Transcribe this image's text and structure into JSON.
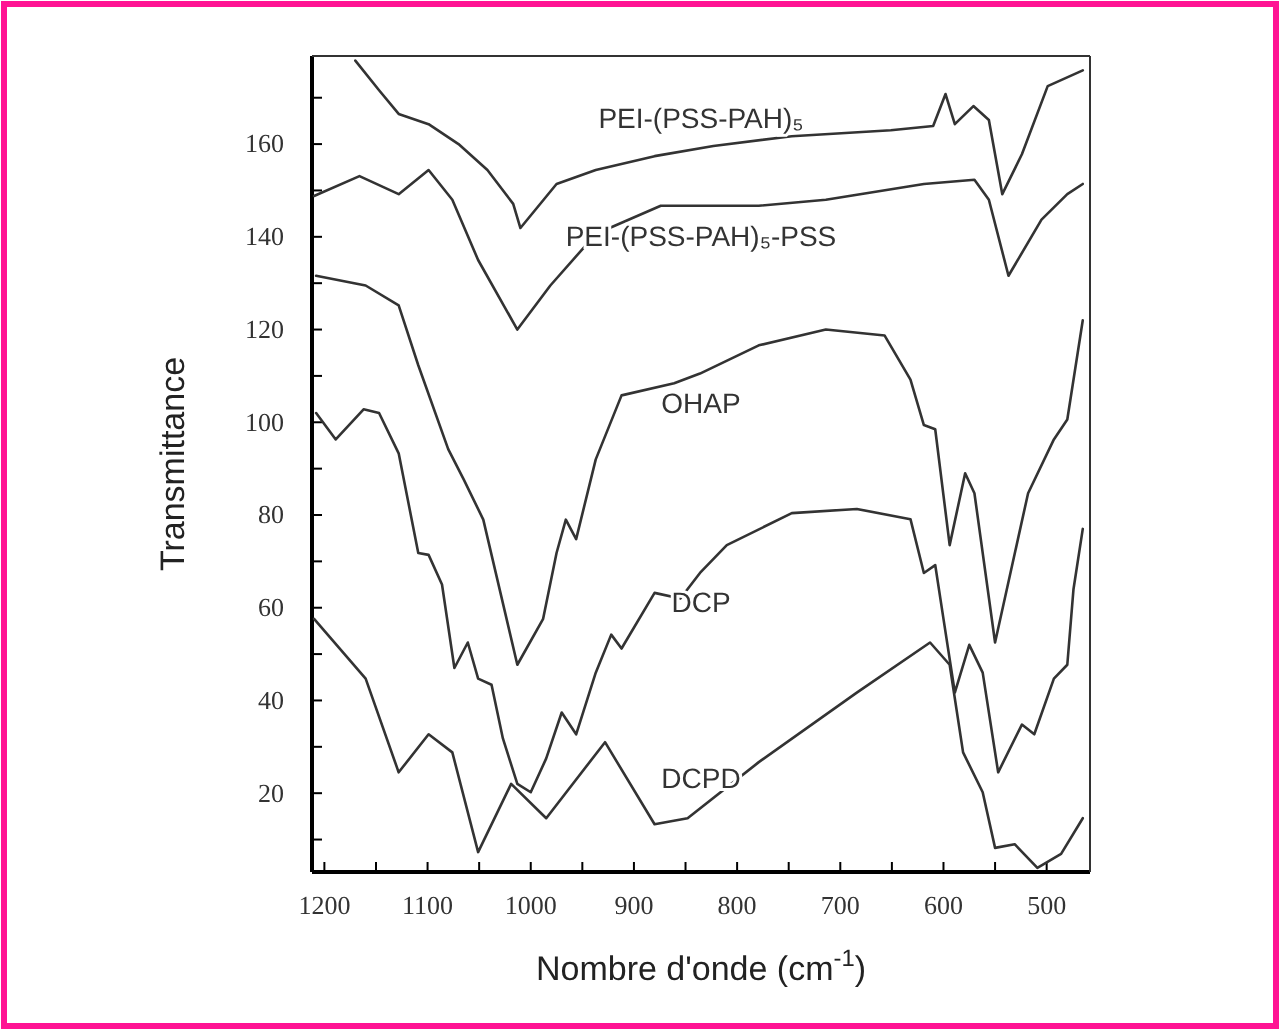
{
  "chart_data": {
    "type": "line",
    "xlabel": "Nombre d'onde (cm$^{-1}$)",
    "ylabel": "Transmittance",
    "xlim": [
      1212,
      458
    ],
    "ylim": [
      3,
      179
    ],
    "xticks": [
      1200,
      {
        "value": 1150,
        "label": null
      },
      1100,
      {
        "value": 1050,
        "label": null
      },
      1000,
      {
        "value": 950,
        "label": null
      },
      900,
      {
        "value": 850,
        "label": null
      },
      800,
      {
        "value": 750,
        "label": null
      },
      700,
      {
        "value": 650,
        "label": null
      },
      600,
      {
        "value": 550,
        "label": null
      },
      500
    ],
    "yticks": [
      {
        "value": 10,
        "label": null
      },
      20,
      {
        "value": 30,
        "label": null
      },
      40,
      {
        "value": 50,
        "label": null
      },
      60,
      {
        "value": 70,
        "label": null
      },
      80,
      {
        "value": 90,
        "label": null
      },
      100,
      {
        "value": 110,
        "label": null
      },
      120,
      {
        "value": 130,
        "label": null
      },
      140,
      {
        "value": 150,
        "label": null
      },
      160,
      {
        "value": 170,
        "label": null
      }
    ],
    "grid": false,
    "marker": "none",
    "line_style": "solid",
    "series": [
      {
        "name": "PEI-(PSS-PAH)₅",
        "color": "#333333",
        "x": [
          1170,
          1147,
          1128,
          1099,
          1070,
          1042,
          1017,
          1010,
          975,
          937,
          880,
          823,
          747,
          651,
          610,
          598,
          589,
          571,
          556,
          543,
          524,
          499,
          465
        ],
        "values": [
          178,
          171.6,
          166.5,
          164.3,
          160,
          154.4,
          147.1,
          141.9,
          151.4,
          154.4,
          157.4,
          159.6,
          161.7,
          163,
          163.9,
          170.8,
          164.3,
          168.2,
          165.2,
          149.2,
          157.8,
          172.5,
          175.9
        ]
      },
      {
        "name": "PEI-(PSS-PAH)₅-PSS",
        "color": "#333333",
        "x": [
          1210,
          1166,
          1128,
          1099,
          1076,
          1051,
          1013,
          981,
          937,
          874,
          779,
          714,
          619,
          570,
          556,
          537,
          505,
          480,
          465
        ],
        "values": [
          148.8,
          153.1,
          149.2,
          154.4,
          148,
          135,
          120,
          129.5,
          140.6,
          146.7,
          146.7,
          148,
          151.4,
          152.3,
          148,
          131.6,
          143.7,
          149.2,
          151.4
        ]
      },
      {
        "name": "OHAP",
        "color": "#333333",
        "x": [
          1208,
          1160,
          1128,
          1109,
          1080,
          1065,
          1046,
          1013,
          988,
          975,
          966,
          956,
          937,
          912,
          861,
          836,
          779,
          714,
          657,
          632,
          619,
          608,
          594,
          579,
          570,
          550,
          518,
          493,
          480,
          465
        ],
        "values": [
          131.6,
          129.5,
          125.2,
          112.3,
          94.2,
          87.7,
          79,
          47.7,
          57.6,
          71.8,
          79,
          74.8,
          92,
          105.8,
          108.4,
          110.5,
          116.6,
          120,
          118.7,
          109.2,
          99.4,
          98.5,
          73.5,
          89,
          84.7,
          52.5,
          84.7,
          96.3,
          100.6,
          122
        ]
      },
      {
        "name": "DCP",
        "color": "#333333",
        "x": [
          1208,
          1189,
          1162,
          1147,
          1128,
          1109,
          1099,
          1086,
          1074,
          1061,
          1051,
          1038,
          1027,
          1013,
          1000,
          985,
          970,
          956,
          937,
          922,
          912,
          880,
          855,
          836,
          810,
          747,
          684,
          632,
          619,
          608,
          600,
          589,
          575,
          562,
          547,
          524,
          512,
          493,
          480,
          474,
          465
        ],
        "values": [
          102,
          96.3,
          102.8,
          102,
          93.3,
          71.8,
          71.4,
          65,
          47,
          52.5,
          44.7,
          43.4,
          31.8,
          22,
          20.2,
          27.5,
          37.4,
          32.7,
          46,
          54.2,
          51.2,
          63.2,
          62,
          67.5,
          73.5,
          80.4,
          81.3,
          79.1,
          67.5,
          69.2,
          57.6,
          41.7,
          52,
          46,
          24.5,
          34.8,
          32.7,
          44.7,
          47.7,
          64,
          77
        ]
      },
      {
        "name": "DCPD",
        "color": "#333333",
        "x": [
          1210,
          1160,
          1128,
          1099,
          1076,
          1051,
          1019,
          985,
          928,
          880,
          848,
          779,
          684,
          613,
          594,
          581,
          562,
          550,
          531,
          509,
          486,
          465
        ],
        "values": [
          57.6,
          44.7,
          24.5,
          32.7,
          28.8,
          7.3,
          22,
          14.6,
          31,
          13.3,
          14.6,
          26.7,
          41.7,
          52.5,
          47.7,
          28.8,
          20.2,
          8.2,
          9,
          3.9,
          6.9,
          14.6
        ]
      }
    ]
  }
}
